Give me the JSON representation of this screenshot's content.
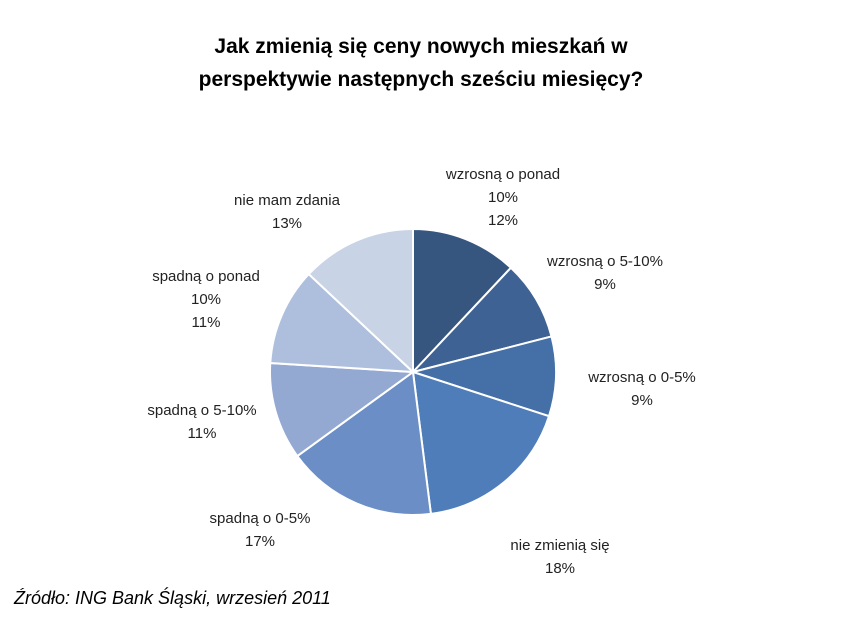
{
  "title_lines": [
    "Jak zmienią się ceny nowych mieszkań w",
    "perspektywie następnych sześciu miesięcy?"
  ],
  "source": "Źródło: ING Bank Śląski, wrzesień 2011",
  "chart_data": {
    "type": "pie",
    "title": "Jak zmienią się ceny nowych mieszkań w perspektywie następnych sześciu miesięcy?",
    "unit": "%",
    "slices": [
      {
        "label_lines": [
          "wzrosną o ponad",
          "10%"
        ],
        "value": 12,
        "value_label": "12%",
        "color": "#36557f"
      },
      {
        "label_lines": [
          "wzrosną o 5-10%"
        ],
        "value": 9,
        "value_label": "9%",
        "color": "#3e6294"
      },
      {
        "label_lines": [
          "wzrosną o 0-5%"
        ],
        "value": 9,
        "value_label": "9%",
        "color": "#456fa7"
      },
      {
        "label_lines": [
          "nie zmienią się"
        ],
        "value": 18,
        "value_label": "18%",
        "color": "#4f7dba"
      },
      {
        "label_lines": [
          "spadną o 0-5%"
        ],
        "value": 17,
        "value_label": "17%",
        "color": "#6a8ec5"
      },
      {
        "label_lines": [
          "spadną o 5-10%"
        ],
        "value": 11,
        "value_label": "11%",
        "color": "#93a9d2"
      },
      {
        "label_lines": [
          "spadną o ponad",
          "10%"
        ],
        "value": 11,
        "value_label": "11%",
        "color": "#aebfdd"
      },
      {
        "label_lines": [
          "nie mam zdania"
        ],
        "value": 13,
        "value_label": "13%",
        "color": "#c9d3e6"
      }
    ]
  }
}
